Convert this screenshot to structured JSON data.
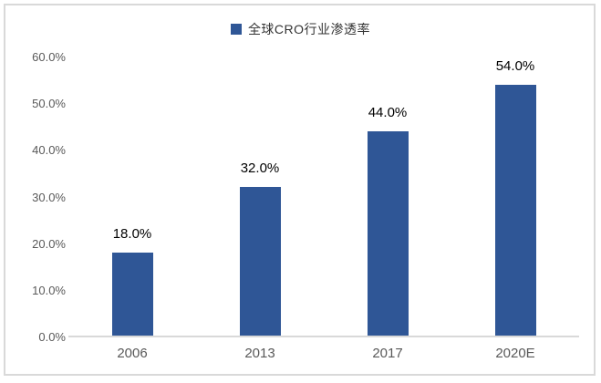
{
  "chart_data": {
    "type": "bar",
    "legend": "全球CRO行业渗透率",
    "legend_position": "top-center",
    "categories": [
      "2006",
      "2013",
      "2017",
      "2020E"
    ],
    "values": [
      18.0,
      32.0,
      44.0,
      54.0
    ],
    "value_labels": [
      "18.0%",
      "32.0%",
      "44.0%",
      "54.0%"
    ],
    "y_ticks": [
      "0.0%",
      "10.0%",
      "20.0%",
      "30.0%",
      "40.0%",
      "50.0%",
      "60.0%"
    ],
    "y_tick_values": [
      0,
      10,
      20,
      30,
      40,
      50,
      60
    ],
    "ylim": [
      0,
      60
    ],
    "xlabel": "",
    "ylabel": "",
    "grid": false,
    "bar_color": "#2f5696",
    "axis_line_color": "#d9d9d9",
    "frame_border_color": "#d9d9d9",
    "tick_label_color": "#595959",
    "value_label_color": "#000000"
  }
}
